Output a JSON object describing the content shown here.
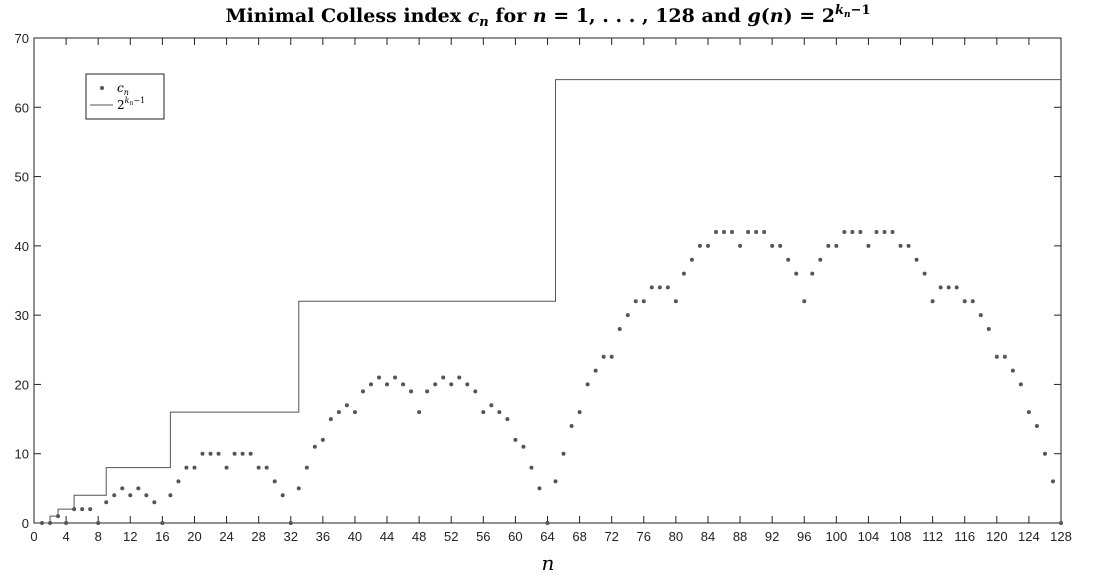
{
  "chart_data": {
    "type": "scatter",
    "title": "Minimal Colless index c_n for n = 1,...,128 and g(n) = 2^(k_n − 1)",
    "xlabel": "n",
    "ylabel": "",
    "xlim": [
      0,
      128
    ],
    "ylim": [
      0,
      70
    ],
    "xticks": [
      0,
      4,
      8,
      12,
      16,
      20,
      24,
      28,
      32,
      36,
      40,
      44,
      48,
      52,
      56,
      60,
      64,
      68,
      72,
      76,
      80,
      84,
      88,
      92,
      96,
      100,
      104,
      108,
      112,
      116,
      120,
      124,
      128
    ],
    "yticks": [
      0,
      10,
      20,
      30,
      40,
      50,
      60,
      70
    ],
    "legend_position": "top-left",
    "grid": false,
    "series": [
      {
        "name": "c_n",
        "kind": "points",
        "color": "#555555",
        "x": [
          1,
          2,
          3,
          4,
          5,
          6,
          7,
          8,
          9,
          10,
          11,
          12,
          13,
          14,
          15,
          16,
          17,
          18,
          19,
          20,
          21,
          22,
          23,
          24,
          25,
          26,
          27,
          28,
          29,
          30,
          31,
          32,
          33,
          34,
          35,
          36,
          37,
          38,
          39,
          40,
          41,
          42,
          43,
          44,
          45,
          46,
          47,
          48,
          49,
          50,
          51,
          52,
          53,
          54,
          55,
          56,
          57,
          58,
          59,
          60,
          61,
          62,
          63,
          64,
          65,
          66,
          67,
          68,
          69,
          70,
          71,
          72,
          73,
          74,
          75,
          76,
          77,
          78,
          79,
          80,
          81,
          82,
          83,
          84,
          85,
          86,
          87,
          88,
          89,
          90,
          91,
          92,
          93,
          94,
          95,
          96,
          97,
          98,
          99,
          100,
          101,
          102,
          103,
          104,
          105,
          106,
          107,
          108,
          109,
          110,
          111,
          112,
          113,
          114,
          115,
          116,
          117,
          118,
          119,
          120,
          121,
          122,
          123,
          124,
          125,
          126,
          127,
          128
        ],
        "y": [
          0,
          0,
          1,
          0,
          2,
          2,
          2,
          0,
          3,
          4,
          5,
          4,
          5,
          4,
          3,
          0,
          4,
          6,
          8,
          8,
          10,
          10,
          10,
          8,
          10,
          10,
          10,
          8,
          8,
          6,
          4,
          0,
          5,
          8,
          11,
          12,
          15,
          16,
          17,
          16,
          19,
          20,
          21,
          20,
          21,
          20,
          19,
          16,
          19,
          20,
          21,
          20,
          21,
          20,
          19,
          16,
          17,
          16,
          15,
          12,
          11,
          8,
          5,
          0,
          6,
          10,
          14,
          16,
          20,
          22,
          24,
          24,
          28,
          30,
          32,
          32,
          34,
          34,
          34,
          32,
          36,
          38,
          40,
          40,
          42,
          42,
          42,
          40,
          42,
          42,
          42,
          40,
          40,
          38,
          36,
          32,
          36,
          38,
          40,
          40,
          42,
          42,
          42,
          40,
          42,
          42,
          42,
          40,
          40,
          38,
          36,
          32,
          34,
          34,
          34,
          32,
          32,
          30,
          28,
          24,
          24,
          22,
          20,
          16,
          14,
          10,
          6,
          0
        ]
      },
      {
        "name": "2^(k_n − 1)",
        "kind": "step",
        "color": "#555555",
        "x": [
          1,
          2,
          3,
          5,
          9,
          17,
          33,
          65,
          128
        ],
        "y": [
          0,
          1,
          2,
          4,
          8,
          16,
          32,
          64,
          64
        ]
      }
    ]
  }
}
